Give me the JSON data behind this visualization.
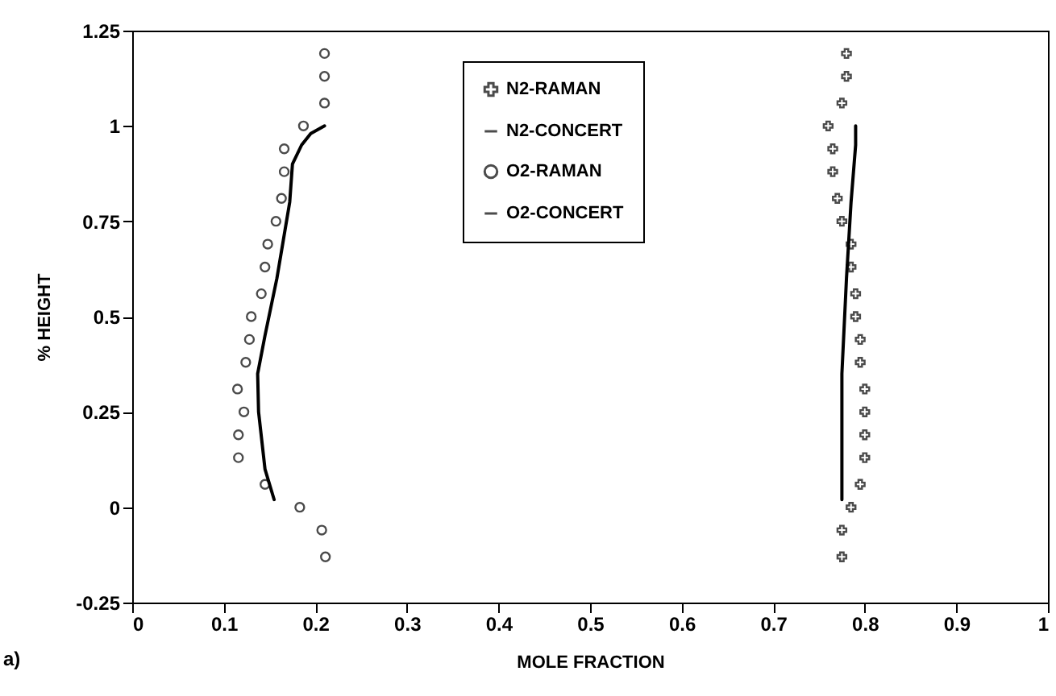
{
  "chart_data": {
    "type": "scatter",
    "xlabel": "MOLE FRACTION",
    "ylabel": "% HEIGHT",
    "annotations": [
      "a)"
    ],
    "xlim": [
      0,
      1
    ],
    "xticks": [
      0,
      0.1,
      0.2,
      0.3,
      0.4,
      0.5,
      0.6,
      0.7,
      0.8,
      0.9,
      1
    ],
    "ylim": [
      -0.25,
      1.25
    ],
    "yticks": [
      -0.25,
      0,
      0.25,
      0.5,
      0.75,
      1,
      1.25
    ],
    "grid": false,
    "legend": "top",
    "series": [
      {
        "name": "N2-RAMAN",
        "marker": "cross",
        "color": "#000000",
        "x": [
          0.78,
          0.78,
          0.775,
          0.76,
          0.765,
          0.765,
          0.77,
          0.775,
          0.785,
          0.785,
          0.79,
          0.79,
          0.795,
          0.795,
          0.8,
          0.8,
          0.8,
          0.8,
          0.795,
          0.785,
          0.775,
          0.775
        ],
        "values": [
          1.19,
          1.13,
          1.06,
          1.0,
          0.94,
          0.88,
          0.81,
          0.75,
          0.69,
          0.63,
          0.56,
          0.5,
          0.44,
          0.38,
          0.31,
          0.25,
          0.19,
          0.13,
          0.06,
          0,
          -0.06,
          -0.13
        ]
      },
      {
        "name": "N2-CONCERT",
        "type": "line",
        "marker": "none",
        "color": "#000000",
        "x": [
          0.79,
          0.79,
          0.785,
          0.78,
          0.775,
          0.775,
          0.775
        ],
        "values": [
          1.0,
          0.95,
          0.8,
          0.6,
          0.35,
          0.15,
          0.02
        ]
      },
      {
        "name": "O2-RAMAN",
        "marker": "circle",
        "color": "#000000",
        "x": [
          0.21,
          0.21,
          0.21,
          0.187,
          0.166,
          0.166,
          0.163,
          0.157,
          0.148,
          0.145,
          0.141,
          0.13,
          0.128,
          0.124,
          0.115,
          0.122,
          0.116,
          0.116,
          0.145,
          0.183,
          0.207,
          0.211
        ],
        "values": [
          1.19,
          1.13,
          1.06,
          1.0,
          0.94,
          0.88,
          0.81,
          0.75,
          0.69,
          0.63,
          0.56,
          0.5,
          0.44,
          0.38,
          0.31,
          0.25,
          0.19,
          0.13,
          0.06,
          0,
          -0.06,
          -0.13
        ]
      },
      {
        "name": "O2-CONCERT",
        "type": "line",
        "marker": "none",
        "color": "#000000",
        "x": [
          0.21,
          0.195,
          0.185,
          0.175,
          0.172,
          0.165,
          0.158,
          0.145,
          0.137,
          0.138,
          0.145,
          0.155
        ],
        "values": [
          1.0,
          0.98,
          0.95,
          0.9,
          0.8,
          0.7,
          0.6,
          0.45,
          0.35,
          0.25,
          0.1,
          0.02
        ]
      }
    ]
  }
}
